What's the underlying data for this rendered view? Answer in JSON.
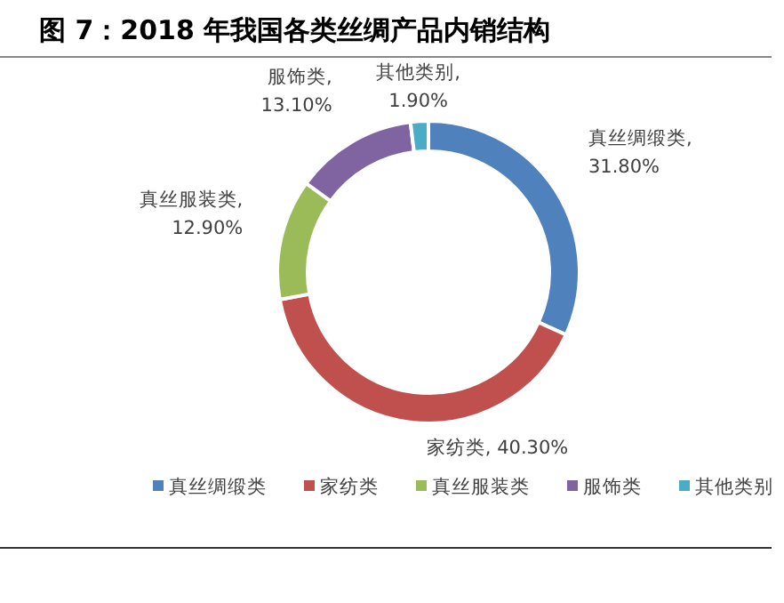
{
  "chart_data": {
    "type": "donut",
    "title": "图 7：2018 年我国各类丝绸产品内销结构",
    "categories": [
      "真丝绸缎类",
      "家纺类",
      "真丝服装类",
      "服饰类",
      "其他类别"
    ],
    "values": [
      31.8,
      40.3,
      12.9,
      13.1,
      1.9
    ],
    "colors": [
      "#4f81bd",
      "#c0504d",
      "#9bbb59",
      "#8064a2",
      "#4bacc6"
    ],
    "value_labels": [
      "真丝绸缎类, 31.80%",
      "家纺类, 40.30%",
      "真丝服装类, 12.90%",
      "服饰类, 13.10%",
      "其他类别, 1.90%"
    ],
    "legend": "bottom"
  }
}
